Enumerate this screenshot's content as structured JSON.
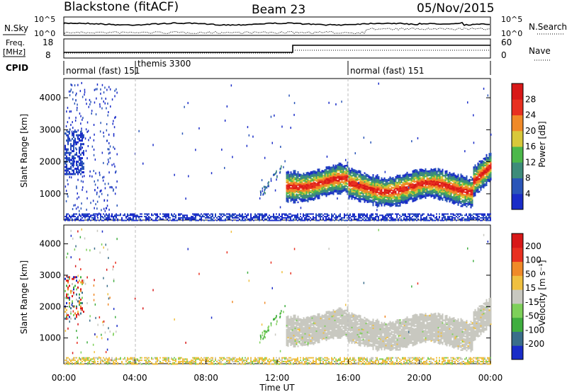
{
  "header": {
    "title": "Blackstone (fitACF)",
    "beam": "Beam 23",
    "date": "05/Nov/2015"
  },
  "noise_panel": {
    "left_label": "N.Sky",
    "right_label": "N.Search",
    "left_ticks": [
      "10^5",
      "10^0"
    ],
    "right_ticks": [
      "10^5",
      "10^0"
    ]
  },
  "freq_panel": {
    "left_label_line1": "Freq.",
    "left_label_line2": "[MHz]",
    "right_label": "Nave",
    "left_ticks": [
      "18",
      "8"
    ],
    "right_ticks": [
      "60",
      "0"
    ]
  },
  "cpid_panel": {
    "label": "CPID",
    "segments": [
      {
        "label": "normal (fast) 151",
        "start_h": 0
      },
      {
        "label": "themis 3300",
        "start_h": 4
      },
      {
        "label": "normal (fast) 151",
        "start_h": 16
      }
    ]
  },
  "chart_data": [
    {
      "type": "heatmap",
      "title": "Power",
      "ylabel": "Slant Range [km]",
      "yticks": [
        "1000",
        "2000",
        "3000",
        "4000"
      ],
      "ylim": [
        180,
        4600
      ],
      "colorbar_label": "Power [dB]",
      "colorbar_ticks": [
        "4",
        "8",
        "12",
        "16",
        "20",
        "24",
        "28"
      ],
      "colors": [
        "#1a2cc8",
        "#2a55b8",
        "#3d8c7a",
        "#4cb84a",
        "#d8c83a",
        "#f08a28",
        "#e83020",
        "#d81818"
      ],
      "features": [
        {
          "desc": "echo band",
          "start_h": 12.5,
          "end_h": 24,
          "range_km": [
            1000,
            1800
          ],
          "peak_db": 28
        },
        {
          "desc": "early echoes",
          "start_h": 0,
          "end_h": 1,
          "range_km": [
            1700,
            3000
          ],
          "peak_db": 8
        },
        {
          "desc": "near-range clutter",
          "start_h": 0,
          "end_h": 24,
          "range_km": [
            180,
            400
          ],
          "peak_db": 8
        }
      ]
    },
    {
      "type": "heatmap",
      "title": "Velocity",
      "ylabel": "Slant Range [km]",
      "xlabel": "Time UT",
      "xticks": [
        "00:00",
        "04:00",
        "08:00",
        "12:00",
        "16:00",
        "20:00",
        "00:00"
      ],
      "yticks": [
        "1000",
        "2000",
        "3000",
        "4000"
      ],
      "ylim": [
        180,
        4600
      ],
      "colorbar_label": "Velocity [m s⁻¹]",
      "colorbar_ticks": [
        "200",
        "100",
        "50",
        "15",
        "-15",
        "-50",
        "-100",
        "-200"
      ],
      "colors": [
        "#1a2cc8",
        "#3a6e8a",
        "#3fae3f",
        "#7ed05a",
        "#c8c8c0",
        "#f0c040",
        "#f08a28",
        "#e83020",
        "#d81818"
      ],
      "features": [
        {
          "desc": "ground scatter band",
          "start_h": 12.5,
          "end_h": 24,
          "range_km": [
            1000,
            2000
          ],
          "velocity": "-15..15"
        }
      ]
    }
  ]
}
